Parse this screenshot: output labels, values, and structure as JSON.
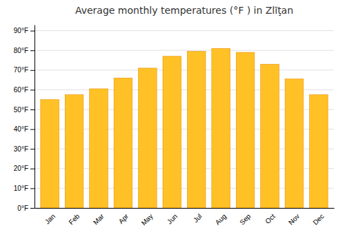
{
  "chart_data": {
    "type": "bar",
    "title": "Average monthly temperatures (°F ) in Zlīţan",
    "categories": [
      "Jan",
      "Feb",
      "Mar",
      "Apr",
      "May",
      "Jun",
      "Jul",
      "Aug",
      "Sep",
      "Oct",
      "Nov",
      "Dec"
    ],
    "values": [
      55,
      57.5,
      60.5,
      66,
      71,
      77,
      79.5,
      81,
      79,
      73,
      65.5,
      57.5
    ],
    "color": "#FFC125",
    "ylim": [
      0,
      93
    ],
    "yticks": [
      {
        "value": 0,
        "label": "0°F"
      },
      {
        "value": 10,
        "label": "10°F"
      },
      {
        "value": 20,
        "label": "20°F"
      },
      {
        "value": 30,
        "label": "30°F"
      },
      {
        "value": 40,
        "label": "40°F"
      },
      {
        "value": 50,
        "label": "50°F"
      },
      {
        "value": 60,
        "label": "60°F"
      },
      {
        "value": 70,
        "label": "70°F"
      },
      {
        "value": 80,
        "label": "80°F"
      },
      {
        "value": 90,
        "label": "90°F"
      }
    ],
    "grid": true
  }
}
